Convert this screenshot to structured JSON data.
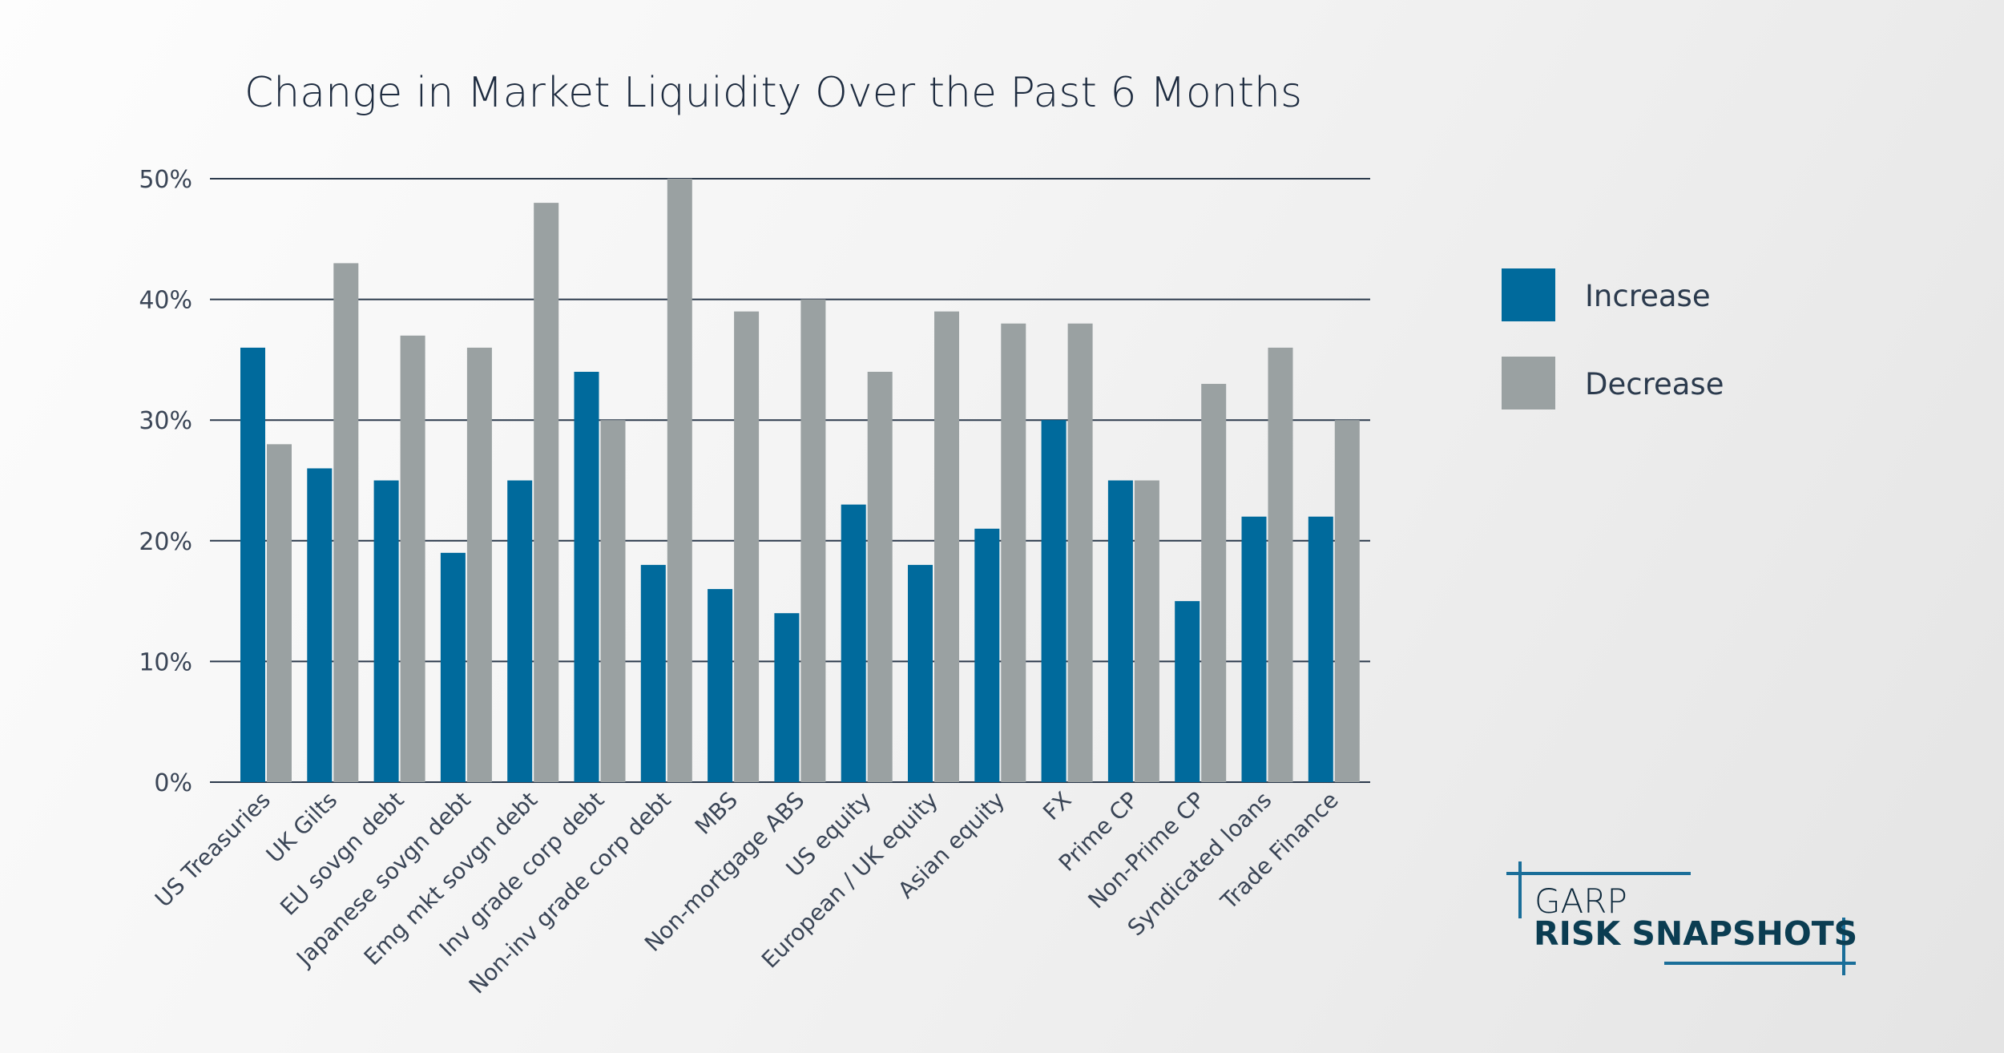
{
  "chart_data": {
    "type": "bar",
    "title": "Change in Market Liquidity Over the Past 6 Months",
    "xlabel": "",
    "ylabel": "",
    "ylim": [
      0,
      50
    ],
    "yticks": [
      "0%",
      "10%",
      "20%",
      "30%",
      "40%",
      "50%"
    ],
    "grid": true,
    "legend_position": "right",
    "categories": [
      "US Treasuries",
      "UK Gilts",
      "EU sovgn debt",
      "Japanese sovgn debt",
      "Emg mkt sovgn debt",
      "Inv grade corp debt",
      "Non-inv grade corp debt",
      "MBS",
      "Non-mortgage ABS",
      "US equity",
      "European / UK equity",
      "Asian equity",
      "FX",
      "Prime CP",
      "Non-Prime CP",
      "Syndicated loans",
      "Trade Finance"
    ],
    "series": [
      {
        "name": "Increase",
        "color": "#006a9c",
        "values": [
          36,
          26,
          25,
          19,
          25,
          34,
          18,
          16,
          14,
          23,
          18,
          21,
          30,
          25,
          15,
          22,
          22
        ]
      },
      {
        "name": "Decrease",
        "color": "#9aa1a2",
        "values": [
          28,
          43,
          37,
          36,
          48,
          30,
          50,
          39,
          40,
          34,
          39,
          38,
          38,
          25,
          33,
          36,
          30
        ]
      }
    ]
  },
  "logo": {
    "line1": "GARP",
    "line2": "RISK SNAPSHOTS",
    "accent_color": "#1a6e99"
  }
}
